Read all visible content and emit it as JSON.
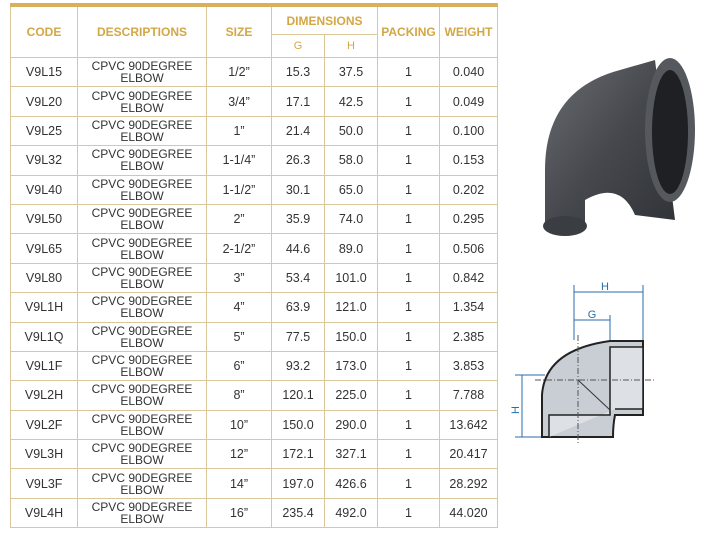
{
  "headers": {
    "code": "CODE",
    "descriptions": "DESCRIPTIONS",
    "size": "SIZE",
    "dimensions": "DIMENSIONS",
    "g": "G",
    "h": "H",
    "packing": "PACKING",
    "weight": "WEIGHT"
  },
  "rows": [
    {
      "code": "V9L15",
      "desc1": "CPVC 90DEGREE",
      "desc2": "ELBOW",
      "size": "1/2”",
      "g": "15.3",
      "h": "37.5",
      "packing": "1",
      "weight": "0.040"
    },
    {
      "code": "V9L20",
      "desc1": "CPVC 90DEGREE",
      "desc2": "ELBOW",
      "size": "3/4”",
      "g": "17.1",
      "h": "42.5",
      "packing": "1",
      "weight": "0.049"
    },
    {
      "code": "V9L25",
      "desc1": "CPVC 90DEGREE",
      "desc2": "ELBOW",
      "size": "1”",
      "g": "21.4",
      "h": "50.0",
      "packing": "1",
      "weight": "0.100"
    },
    {
      "code": "V9L32",
      "desc1": "CPVC 90DEGREE",
      "desc2": "ELBOW",
      "size": "1-1/4”",
      "g": "26.3",
      "h": "58.0",
      "packing": "1",
      "weight": "0.153"
    },
    {
      "code": "V9L40",
      "desc1": "CPVC 90DEGREE",
      "desc2": "ELBOW",
      "size": "1-1/2”",
      "g": "30.1",
      "h": "65.0",
      "packing": "1",
      "weight": "0.202"
    },
    {
      "code": "V9L50",
      "desc1": "CPVC 90DEGREE",
      "desc2": "ELBOW",
      "size": "2”",
      "g": "35.9",
      "h": "74.0",
      "packing": "1",
      "weight": "0.295"
    },
    {
      "code": "V9L65",
      "desc1": "CPVC 90DEGREE",
      "desc2": "ELBOW",
      "size": "2-1/2”",
      "g": "44.6",
      "h": "89.0",
      "packing": "1",
      "weight": "0.506"
    },
    {
      "code": "V9L80",
      "desc1": "CPVC 90DEGREE",
      "desc2": "ELBOW",
      "size": "3”",
      "g": "53.4",
      "h": "101.0",
      "packing": "1",
      "weight": "0.842"
    },
    {
      "code": "V9L1H",
      "desc1": "CPVC 90DEGREE",
      "desc2": "ELBOW",
      "size": "4”",
      "g": "63.9",
      "h": "121.0",
      "packing": "1",
      "weight": "1.354"
    },
    {
      "code": "V9L1Q",
      "desc1": "CPVC 90DEGREE",
      "desc2": "ELBOW",
      "size": "5”",
      "g": "77.5",
      "h": "150.0",
      "packing": "1",
      "weight": "2.385"
    },
    {
      "code": "V9L1F",
      "desc1": "CPVC 90DEGREE",
      "desc2": "ELBOW",
      "size": "6”",
      "g": "93.2",
      "h": "173.0",
      "packing": "1",
      "weight": "3.853"
    },
    {
      "code": "V9L2H",
      "desc1": "CPVC 90DEGREE",
      "desc2": "ELBOW",
      "size": "8”",
      "g": "120.1",
      "h": "225.0",
      "packing": "1",
      "weight": "7.788"
    },
    {
      "code": "V9L2F",
      "desc1": "CPVC 90DEGREE",
      "desc2": "ELBOW",
      "size": "10”",
      "g": "150.0",
      "h": "290.0",
      "packing": "1",
      "weight": "13.642"
    },
    {
      "code": "V9L3H",
      "desc1": "CPVC 90DEGREE",
      "desc2": "ELBOW",
      "size": "12”",
      "g": "172.1",
      "h": "327.1",
      "packing": "1",
      "weight": "20.417"
    },
    {
      "code": "V9L3F",
      "desc1": "CPVC 90DEGREE",
      "desc2": "ELBOW",
      "size": "14”",
      "g": "197.0",
      "h": "426.6",
      "packing": "1",
      "weight": "28.292"
    },
    {
      "code": "V9L4H",
      "desc1": "CPVC 90DEGREE",
      "desc2": "ELBOW",
      "size": "16”",
      "g": "235.4",
      "h": "492.0",
      "packing": "1",
      "weight": "44.020"
    }
  ],
  "drawing": {
    "label_h": "H",
    "label_g": "G"
  },
  "colors": {
    "header_gold": "#d3a744",
    "border": "#dcc79a",
    "pipe_gray": "#4a4d52"
  }
}
